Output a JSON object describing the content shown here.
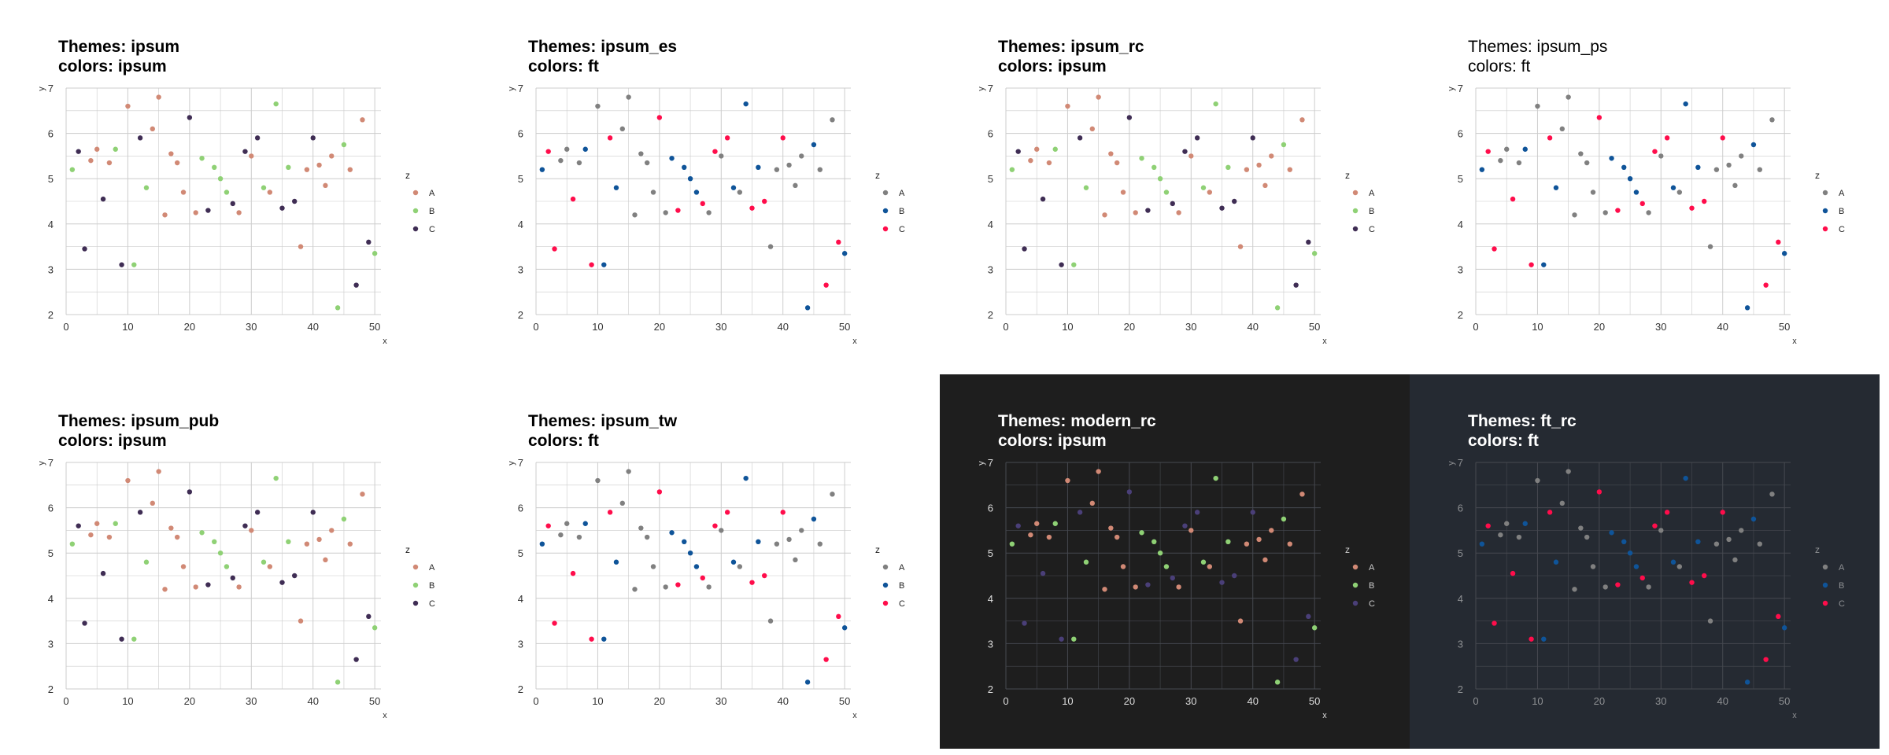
{
  "chart_data": [
    {
      "type": "scatter",
      "title": "Themes: ipsum",
      "subtitle": "colors: ipsum",
      "xlabel": "x",
      "ylabel": "y",
      "theme": "light",
      "palette": "ipsum"
    },
    {
      "type": "scatter",
      "title": "Themes: ipsum_es",
      "subtitle": "colors: ft",
      "xlabel": "x",
      "ylabel": "y",
      "theme": "light",
      "palette": "ft"
    },
    {
      "type": "scatter",
      "title": "Themes: ipsum_rc",
      "subtitle": "colors: ipsum",
      "xlabel": "x",
      "ylabel": "y",
      "theme": "light",
      "palette": "ipsum"
    },
    {
      "type": "scatter",
      "title": "Themes: ipsum_ps",
      "subtitle": "colors: ft",
      "xlabel": "x",
      "ylabel": "y",
      "theme": "light",
      "title_weight": "normal",
      "palette": "ft"
    },
    {
      "type": "scatter",
      "title": "Themes: ipsum_pub",
      "subtitle": "colors: ipsum",
      "xlabel": "x",
      "ylabel": "y",
      "theme": "light",
      "palette": "ipsum"
    },
    {
      "type": "scatter",
      "title": "Themes: ipsum_tw",
      "subtitle": "colors: ft",
      "xlabel": "x",
      "ylabel": "y",
      "theme": "light",
      "palette": "ft"
    },
    {
      "type": "scatter",
      "title": "Themes: modern_rc",
      "subtitle": "colors: ipsum",
      "xlabel": "x",
      "ylabel": "y",
      "theme": "modern_rc",
      "palette": "ipsum"
    },
    {
      "type": "scatter",
      "title": "Themes: ft_rc",
      "subtitle": "colors: ft",
      "xlabel": "x",
      "ylabel": "y",
      "theme": "ft_rc",
      "palette": "ft"
    }
  ],
  "shared": {
    "xlim": [
      0,
      51
    ],
    "ylim": [
      2,
      7
    ],
    "x_ticks": [
      0,
      10,
      20,
      30,
      40,
      50
    ],
    "y_ticks": [
      2,
      3,
      4,
      5,
      6,
      7
    ],
    "legend_title": "z",
    "legend_position": "right",
    "grid": true,
    "points": [
      {
        "x": 1,
        "y": 5.2,
        "z": "B"
      },
      {
        "x": 2,
        "y": 5.6,
        "z": "C"
      },
      {
        "x": 3,
        "y": 3.45,
        "z": "C"
      },
      {
        "x": 4,
        "y": 5.4,
        "z": "A"
      },
      {
        "x": 5,
        "y": 5.65,
        "z": "A"
      },
      {
        "x": 6,
        "y": 4.55,
        "z": "C"
      },
      {
        "x": 7,
        "y": 5.35,
        "z": "A"
      },
      {
        "x": 8,
        "y": 5.65,
        "z": "B"
      },
      {
        "x": 9,
        "y": 3.1,
        "z": "C"
      },
      {
        "x": 10,
        "y": 6.6,
        "z": "A"
      },
      {
        "x": 11,
        "y": 3.1,
        "z": "B"
      },
      {
        "x": 12,
        "y": 5.9,
        "z": "C"
      },
      {
        "x": 13,
        "y": 4.8,
        "z": "B"
      },
      {
        "x": 14,
        "y": 6.1,
        "z": "A"
      },
      {
        "x": 15,
        "y": 6.8,
        "z": "A"
      },
      {
        "x": 16,
        "y": 4.2,
        "z": "A"
      },
      {
        "x": 17,
        "y": 5.55,
        "z": "A"
      },
      {
        "x": 18,
        "y": 5.35,
        "z": "A"
      },
      {
        "x": 19,
        "y": 4.7,
        "z": "A"
      },
      {
        "x": 20,
        "y": 6.35,
        "z": "C"
      },
      {
        "x": 21,
        "y": 4.25,
        "z": "A"
      },
      {
        "x": 22,
        "y": 5.45,
        "z": "B"
      },
      {
        "x": 23,
        "y": 4.3,
        "z": "C"
      },
      {
        "x": 24,
        "y": 5.25,
        "z": "B"
      },
      {
        "x": 25,
        "y": 5.0,
        "z": "B"
      },
      {
        "x": 26,
        "y": 4.7,
        "z": "B"
      },
      {
        "x": 27,
        "y": 4.45,
        "z": "C"
      },
      {
        "x": 28,
        "y": 4.25,
        "z": "A"
      },
      {
        "x": 29,
        "y": 5.6,
        "z": "C"
      },
      {
        "x": 30,
        "y": 5.5,
        "z": "A"
      },
      {
        "x": 31,
        "y": 5.9,
        "z": "C"
      },
      {
        "x": 32,
        "y": 4.8,
        "z": "B"
      },
      {
        "x": 33,
        "y": 4.7,
        "z": "A"
      },
      {
        "x": 34,
        "y": 6.65,
        "z": "B"
      },
      {
        "x": 35,
        "y": 4.35,
        "z": "C"
      },
      {
        "x": 36,
        "y": 5.25,
        "z": "B"
      },
      {
        "x": 37,
        "y": 4.5,
        "z": "C"
      },
      {
        "x": 38,
        "y": 3.5,
        "z": "A"
      },
      {
        "x": 39,
        "y": 5.2,
        "z": "A"
      },
      {
        "x": 40,
        "y": 5.9,
        "z": "C"
      },
      {
        "x": 41,
        "y": 5.3,
        "z": "A"
      },
      {
        "x": 42,
        "y": 4.85,
        "z": "A"
      },
      {
        "x": 43,
        "y": 5.5,
        "z": "A"
      },
      {
        "x": 44,
        "y": 2.15,
        "z": "B"
      },
      {
        "x": 45,
        "y": 5.75,
        "z": "B"
      },
      {
        "x": 46,
        "y": 5.2,
        "z": "A"
      },
      {
        "x": 47,
        "y": 2.65,
        "z": "C"
      },
      {
        "x": 48,
        "y": 6.3,
        "z": "A"
      },
      {
        "x": 49,
        "y": 3.6,
        "z": "C"
      },
      {
        "x": 50,
        "y": 3.35,
        "z": "B"
      }
    ]
  },
  "palettes": {
    "ipsum": {
      "A": "#d18975",
      "B": "#8fd175",
      "C": "#3f2d54"
    },
    "ft": {
      "A": "#808080",
      "B": "#0f5499",
      "C": "#ff0d4b"
    },
    "ipsum_on_modern_rc": {
      "A": "#d18975",
      "B": "#8fd175",
      "C": "#4a3f78"
    }
  },
  "themes": {
    "light": {
      "bg": "#ffffff",
      "grid": "#cccccc",
      "text": "#000000",
      "tick": "#333333",
      "legend": "#222222"
    },
    "modern_rc": {
      "bg": "#1e1e1e",
      "grid": "#464950",
      "text": "#ffffff",
      "tick": "#dddddd",
      "legend": "#cccccc"
    },
    "ft_rc": {
      "bg": "#252a32",
      "grid": "#464950",
      "text": "#ffffff",
      "tick": "#8e9093",
      "legend": "#8e9093"
    }
  }
}
